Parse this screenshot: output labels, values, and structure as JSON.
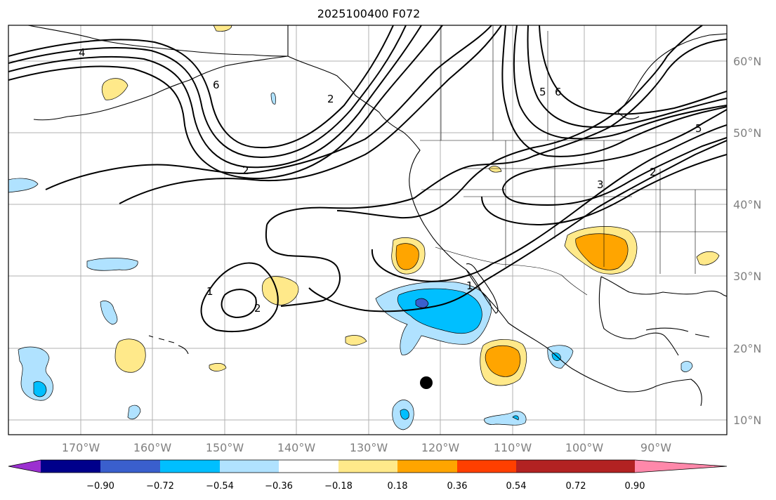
{
  "title": "2025100400 F072",
  "map": {
    "lon_labels": [
      "170°W",
      "160°W",
      "150°W",
      "140°W",
      "130°W",
      "120°W",
      "110°W",
      "100°W",
      "90°W"
    ],
    "lat_labels": [
      "60°N",
      "50°N",
      "40°N",
      "30°N",
      "20°N",
      "10°N"
    ],
    "contour_labels": [
      "4",
      "6",
      "2",
      "6",
      "5",
      "2",
      "3",
      "5",
      "2",
      "1",
      "2",
      "1"
    ],
    "storm_marker": "current-position-dot"
  },
  "colorbar": {
    "tick_labels": [
      "−0.90",
      "−0.72",
      "−0.54",
      "−0.36",
      "−0.18",
      "0.18",
      "0.36",
      "0.54",
      "0.72",
      "0.90"
    ],
    "colors": [
      "#9b30d0",
      "#00008b",
      "#3a5fcd",
      "#00bfff",
      "#b0e2ff",
      "#ffffff",
      "#ffe98a",
      "#ffa500",
      "#ff3f00",
      "#b22222",
      "#ff88aa"
    ]
  }
}
